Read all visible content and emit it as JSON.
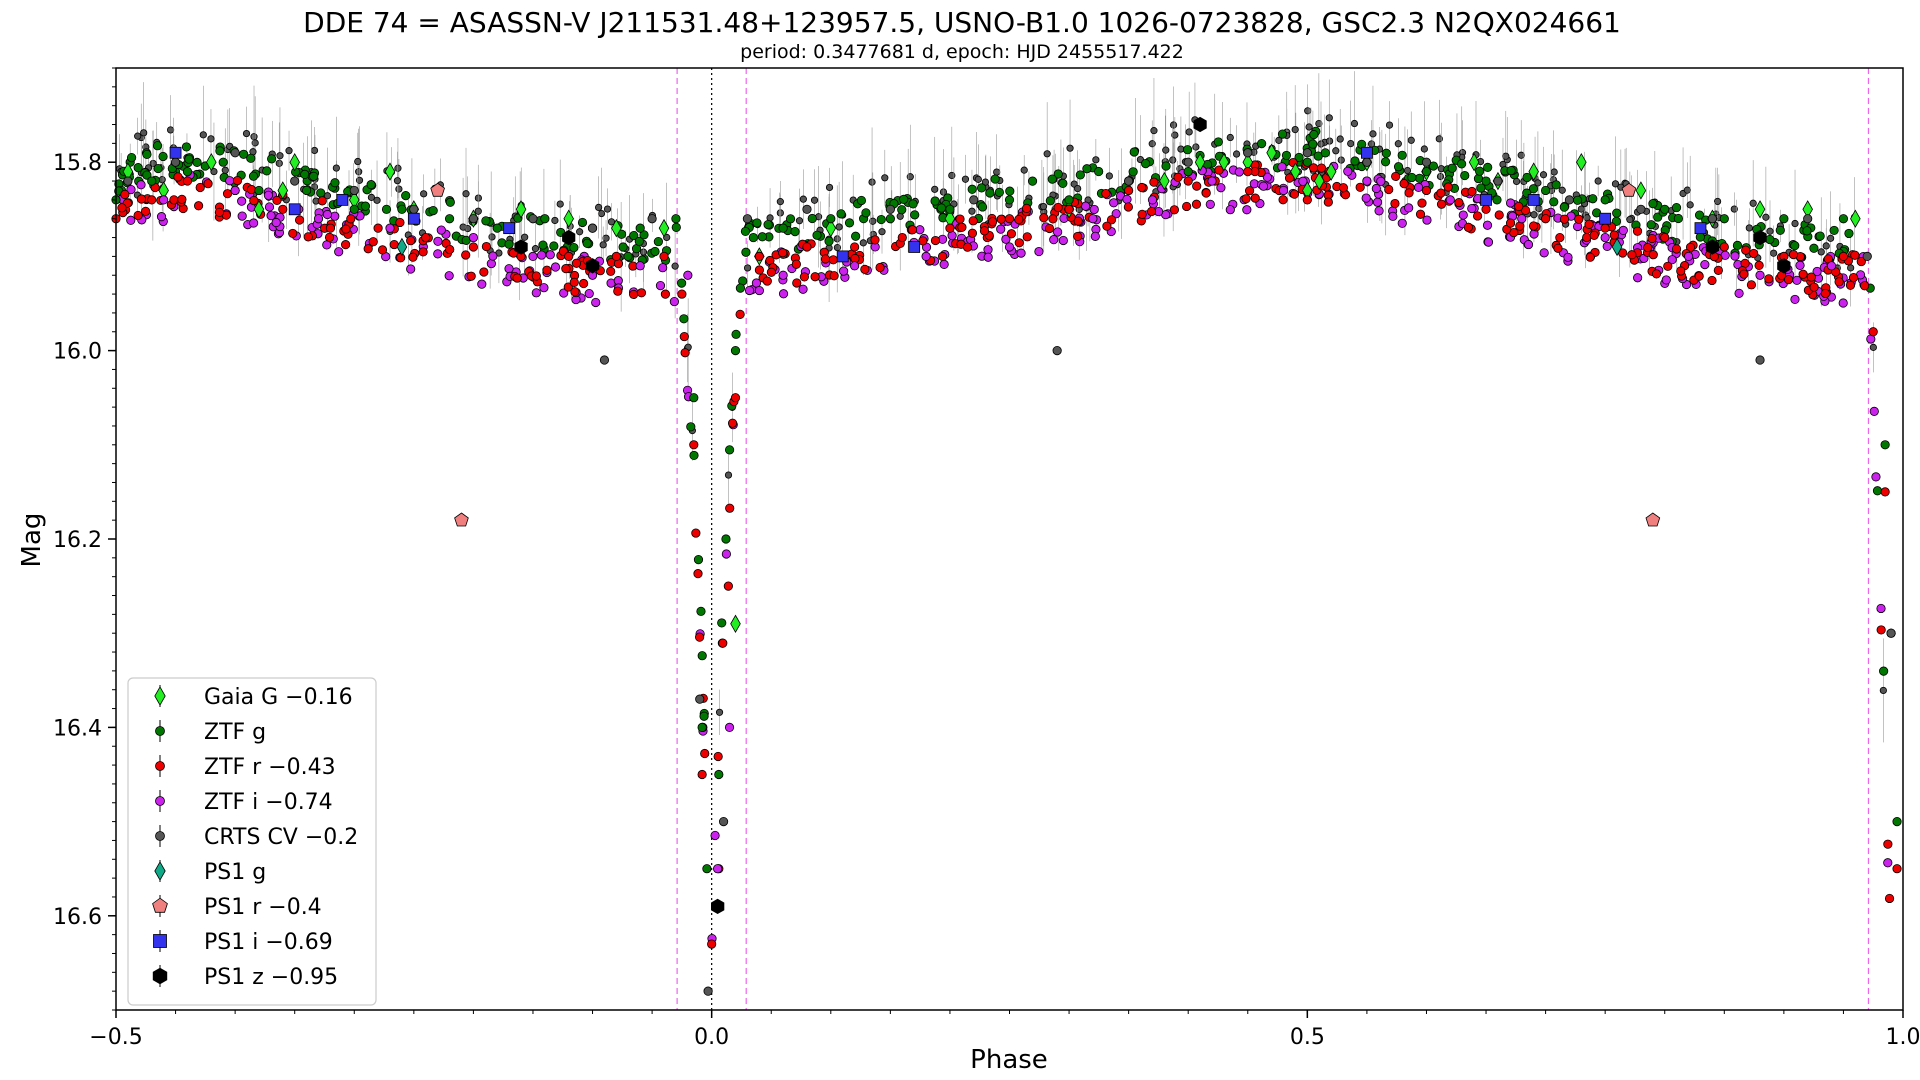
{
  "chart_data": {
    "type": "scatter",
    "title": "DDE 74 = ASASSN-V J211531.48+123957.5, USNO-B1.0 1026-0723828, GSC2.3 N2QX024661",
    "subtitle": "period: 0.3477681 d, epoch: HJD 2455517.422",
    "xlabel": "Phase",
    "ylabel": "Mag",
    "xlim": [
      -0.5,
      1.0
    ],
    "ylim": [
      16.7,
      15.7
    ],
    "y_inverted": true,
    "x_ticks": [
      -0.5,
      0.0,
      0.5,
      1.0
    ],
    "x_tick_labels": [
      "−0.5",
      "0.0",
      "0.5",
      "1.0"
    ],
    "y_ticks": [
      15.8,
      16.0,
      16.2,
      16.4,
      16.6
    ],
    "y_tick_labels": [
      "15.8",
      "16.0",
      "16.2",
      "16.4",
      "16.6"
    ],
    "grid": false,
    "legend_position": "lower-left",
    "reference_lines": [
      {
        "x": 0.0,
        "style": "dotted",
        "color": "#000000"
      },
      {
        "x": -0.029,
        "style": "dashed",
        "color": "#ee66ee"
      },
      {
        "x": 0.029,
        "style": "dashed",
        "color": "#ee66ee"
      },
      {
        "x": 0.971,
        "style": "dashed",
        "color": "#ee66ee"
      }
    ],
    "light_curve_model": {
      "out_of_eclipse": [
        [
          -0.5,
          15.83
        ],
        [
          -0.45,
          15.81
        ],
        [
          -0.4,
          15.82
        ],
        [
          -0.3,
          15.85
        ],
        [
          -0.2,
          15.88
        ],
        [
          -0.1,
          15.9
        ],
        [
          -0.03,
          15.9
        ],
        [
          0.03,
          15.9
        ],
        [
          0.1,
          15.88
        ],
        [
          0.2,
          15.86
        ],
        [
          0.3,
          15.84
        ],
        [
          0.4,
          15.81
        ],
        [
          0.5,
          15.8
        ],
        [
          0.55,
          15.81
        ],
        [
          0.6,
          15.82
        ],
        [
          0.7,
          15.85
        ],
        [
          0.8,
          15.88
        ],
        [
          0.9,
          15.9
        ],
        [
          0.97,
          15.9
        ],
        [
          1.0,
          16.45
        ]
      ],
      "eclipse_center": 0.0,
      "eclipse_half_width": 0.03,
      "eclipse_depth_mag": 16.62
    },
    "series": [
      {
        "name": "Gaia G −0.16",
        "marker": "diamond",
        "color": "#22ee22",
        "points": [
          [
            -0.49,
            15.81
          ],
          [
            -0.46,
            15.83
          ],
          [
            -0.42,
            15.8
          ],
          [
            -0.38,
            15.85
          ],
          [
            -0.36,
            15.83
          ],
          [
            -0.35,
            15.8
          ],
          [
            -0.3,
            15.84
          ],
          [
            -0.27,
            15.81
          ],
          [
            -0.25,
            15.85
          ],
          [
            -0.2,
            15.86
          ],
          [
            -0.16,
            15.85
          ],
          [
            -0.12,
            15.86
          ],
          [
            -0.08,
            15.87
          ],
          [
            -0.04,
            15.87
          ],
          [
            0.02,
            16.29
          ],
          [
            0.04,
            15.9
          ],
          [
            0.1,
            15.87
          ],
          [
            0.2,
            15.86
          ],
          [
            0.3,
            15.85
          ],
          [
            0.38,
            15.82
          ],
          [
            0.41,
            15.8
          ],
          [
            0.43,
            15.8
          ],
          [
            0.45,
            15.8
          ],
          [
            0.47,
            15.79
          ],
          [
            0.49,
            15.81
          ],
          [
            0.5,
            15.83
          ],
          [
            0.51,
            15.82
          ],
          [
            0.52,
            15.81
          ],
          [
            0.55,
            15.8
          ],
          [
            0.6,
            15.81
          ],
          [
            0.64,
            15.8
          ],
          [
            0.66,
            15.82
          ],
          [
            0.69,
            15.81
          ],
          [
            0.73,
            15.8
          ],
          [
            0.78,
            15.83
          ],
          [
            0.84,
            15.86
          ],
          [
            0.88,
            15.85
          ],
          [
            0.92,
            15.85
          ],
          [
            0.96,
            15.86
          ]
        ]
      },
      {
        "name": "ZTF g",
        "marker": "circle",
        "color": "#007700",
        "points": [
          [
            -0.5,
            15.84
          ],
          [
            -0.47,
            15.82
          ],
          [
            -0.44,
            15.81
          ],
          [
            -0.41,
            15.8
          ],
          [
            -0.38,
            15.83
          ],
          [
            -0.34,
            15.83
          ],
          [
            -0.3,
            15.85
          ],
          [
            -0.26,
            15.85
          ],
          [
            -0.22,
            15.86
          ],
          [
            -0.18,
            15.87
          ],
          [
            -0.14,
            15.86
          ],
          [
            -0.1,
            15.87
          ],
          [
            -0.06,
            15.87
          ],
          [
            -0.03,
            15.86
          ],
          [
            -0.015,
            16.05
          ],
          [
            -0.008,
            16.4
          ],
          [
            -0.004,
            16.55
          ],
          [
            0.006,
            16.45
          ],
          [
            0.012,
            16.2
          ],
          [
            0.02,
            16.0
          ],
          [
            0.035,
            15.88
          ],
          [
            0.06,
            15.87
          ],
          [
            0.1,
            15.86
          ],
          [
            0.15,
            15.86
          ],
          [
            0.2,
            15.85
          ],
          [
            0.25,
            15.84
          ],
          [
            0.3,
            15.84
          ],
          [
            0.35,
            15.82
          ],
          [
            0.4,
            15.81
          ],
          [
            0.45,
            15.79
          ],
          [
            0.5,
            15.8
          ],
          [
            0.55,
            15.8
          ],
          [
            0.6,
            15.81
          ],
          [
            0.65,
            15.82
          ],
          [
            0.7,
            15.83
          ],
          [
            0.75,
            15.84
          ],
          [
            0.8,
            15.85
          ],
          [
            0.85,
            15.86
          ],
          [
            0.9,
            15.86
          ],
          [
            0.95,
            15.86
          ],
          [
            0.985,
            16.1
          ],
          [
            0.99,
            16.3
          ],
          [
            0.995,
            16.5
          ]
        ]
      },
      {
        "name": "ZTF r −0.43",
        "marker": "circle",
        "color": "#ee0000",
        "points": [
          [
            -0.5,
            15.86
          ],
          [
            -0.47,
            15.84
          ],
          [
            -0.44,
            15.82
          ],
          [
            -0.4,
            15.83
          ],
          [
            -0.36,
            15.85
          ],
          [
            -0.32,
            15.87
          ],
          [
            -0.28,
            15.87
          ],
          [
            -0.24,
            15.88
          ],
          [
            -0.2,
            15.89
          ],
          [
            -0.16,
            15.9
          ],
          [
            -0.12,
            15.9
          ],
          [
            -0.08,
            15.9
          ],
          [
            -0.04,
            15.9
          ],
          [
            -0.025,
            15.94
          ],
          [
            -0.015,
            16.1
          ],
          [
            -0.008,
            16.45
          ],
          [
            0.0,
            16.63
          ],
          [
            0.006,
            16.55
          ],
          [
            0.014,
            16.25
          ],
          [
            0.02,
            16.05
          ],
          [
            0.04,
            15.9
          ],
          [
            0.08,
            15.89
          ],
          [
            0.12,
            15.89
          ],
          [
            0.16,
            15.88
          ],
          [
            0.2,
            15.87
          ],
          [
            0.25,
            15.86
          ],
          [
            0.3,
            15.85
          ],
          [
            0.35,
            15.83
          ],
          [
            0.4,
            15.82
          ],
          [
            0.45,
            15.81
          ],
          [
            0.5,
            15.84
          ],
          [
            0.55,
            15.82
          ],
          [
            0.6,
            15.83
          ],
          [
            0.65,
            15.85
          ],
          [
            0.7,
            15.86
          ],
          [
            0.75,
            15.87
          ],
          [
            0.8,
            15.88
          ],
          [
            0.85,
            15.89
          ],
          [
            0.9,
            15.9
          ],
          [
            0.95,
            15.9
          ],
          [
            0.975,
            15.98
          ],
          [
            0.985,
            16.15
          ],
          [
            0.995,
            16.55
          ]
        ]
      },
      {
        "name": "ZTF i −0.74",
        "marker": "circle",
        "color": "#cc22ee",
        "points": [
          [
            -0.46,
            15.84
          ],
          [
            -0.4,
            15.83
          ],
          [
            -0.33,
            15.86
          ],
          [
            -0.27,
            15.87
          ],
          [
            -0.2,
            15.88
          ],
          [
            -0.15,
            15.9
          ],
          [
            -0.1,
            15.92
          ],
          [
            -0.06,
            15.91
          ],
          [
            -0.02,
            15.92
          ],
          [
            0.005,
            16.55
          ],
          [
            0.015,
            16.4
          ],
          [
            0.06,
            15.92
          ],
          [
            0.12,
            15.91
          ],
          [
            0.18,
            15.9
          ],
          [
            0.25,
            15.89
          ],
          [
            0.32,
            15.86
          ],
          [
            0.37,
            15.84
          ],
          [
            0.42,
            15.82
          ],
          [
            0.48,
            15.83
          ],
          [
            0.55,
            15.82
          ],
          [
            0.62,
            15.84
          ],
          [
            0.68,
            15.86
          ],
          [
            0.75,
            15.88
          ],
          [
            0.82,
            15.9
          ],
          [
            0.88,
            15.92
          ],
          [
            0.94,
            15.91
          ]
        ]
      },
      {
        "name": "CRTS CV −0.2",
        "marker": "circle",
        "color": "#555555",
        "points": [
          [
            -0.49,
            15.82
          ],
          [
            -0.45,
            15.8
          ],
          [
            -0.4,
            15.79
          ],
          [
            -0.35,
            15.82
          ],
          [
            -0.3,
            15.83
          ],
          [
            -0.25,
            15.85
          ],
          [
            -0.2,
            15.86
          ],
          [
            -0.15,
            15.86
          ],
          [
            -0.1,
            15.87
          ],
          [
            -0.09,
            16.01
          ],
          [
            -0.05,
            15.86
          ],
          [
            -0.01,
            16.37
          ],
          [
            -0.003,
            16.68
          ],
          [
            0.01,
            16.5
          ],
          [
            0.03,
            15.86
          ],
          [
            0.08,
            15.85
          ],
          [
            0.15,
            15.85
          ],
          [
            0.22,
            15.84
          ],
          [
            0.29,
            16.0
          ],
          [
            0.35,
            15.82
          ],
          [
            0.4,
            15.8
          ],
          [
            0.45,
            15.79
          ],
          [
            0.5,
            15.79
          ],
          [
            0.55,
            15.8
          ],
          [
            0.6,
            15.8
          ],
          [
            0.66,
            15.82
          ],
          [
            0.72,
            15.84
          ],
          [
            0.78,
            15.85
          ],
          [
            0.84,
            15.86
          ],
          [
            0.88,
            16.01
          ],
          [
            0.92,
            15.86
          ],
          [
            0.97,
            15.9
          ],
          [
            0.99,
            16.3
          ]
        ]
      },
      {
        "name": "PS1 g",
        "marker": "diamond",
        "color": "#11aa88",
        "points": [
          [
            -0.26,
            15.89
          ],
          [
            0.76,
            15.89
          ]
        ]
      },
      {
        "name": "PS1 r −0.4",
        "marker": "pentagon",
        "color": "#f08080",
        "points": [
          [
            -0.21,
            16.18
          ],
          [
            -0.23,
            15.83
          ],
          [
            0.79,
            16.18
          ],
          [
            0.77,
            15.83
          ]
        ]
      },
      {
        "name": "PS1 i −0.69",
        "marker": "square",
        "color": "#3333ee",
        "points": [
          [
            -0.45,
            15.79
          ],
          [
            -0.35,
            15.85
          ],
          [
            -0.31,
            15.84
          ],
          [
            -0.25,
            15.86
          ],
          [
            -0.17,
            15.87
          ],
          [
            0.11,
            15.9
          ],
          [
            0.17,
            15.89
          ],
          [
            0.55,
            15.79
          ],
          [
            0.65,
            15.84
          ],
          [
            0.69,
            15.84
          ],
          [
            0.75,
            15.86
          ],
          [
            0.83,
            15.87
          ]
        ]
      },
      {
        "name": "PS1 z −0.95",
        "marker": "hexagon",
        "color": "#000000",
        "points": [
          [
            -0.16,
            15.89
          ],
          [
            -0.12,
            15.88
          ],
          [
            -0.1,
            15.91
          ],
          [
            0.005,
            16.59
          ],
          [
            0.41,
            15.76
          ],
          [
            0.84,
            15.89
          ],
          [
            0.88,
            15.88
          ],
          [
            0.9,
            15.91
          ]
        ]
      }
    ]
  }
}
